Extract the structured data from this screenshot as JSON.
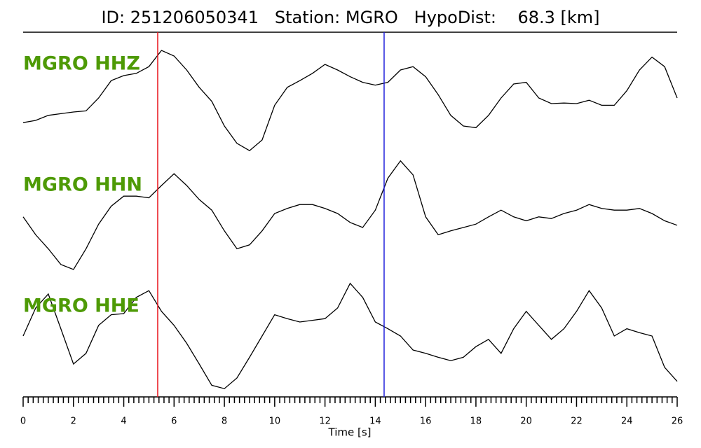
{
  "chart_data": {
    "type": "seismogram",
    "title": "ID: 251206050341   Station: MGRO   HypoDist:    68.3 [km]",
    "xlabel": "Time [s]",
    "xlim": [
      0,
      26
    ],
    "xticks": [
      0,
      2,
      4,
      6,
      8,
      10,
      12,
      14,
      16,
      18,
      20,
      22,
      24,
      26
    ],
    "ylim": [
      -1,
      1
    ],
    "x": [
      0,
      0.5,
      1,
      1.5,
      2,
      2.5,
      3,
      3.5,
      4,
      4.5,
      5,
      5.5,
      6,
      6.5,
      7,
      7.5,
      8,
      8.5,
      9,
      9.5,
      10,
      10.5,
      11,
      11.5,
      12,
      12.5,
      13,
      13.5,
      14,
      14.5,
      15,
      15.5,
      16,
      16.5,
      17,
      17.5,
      18,
      18.5,
      19,
      19.5,
      20,
      20.5,
      21,
      21.5,
      22,
      22.5,
      23,
      23.5,
      24,
      24.5,
      25,
      25.5,
      26
    ],
    "label_color": "#4e9a06",
    "series": [
      {
        "name": "MGRO HHZ",
        "color": "#000000",
        "values": [
          -0.44,
          -0.4,
          -0.31,
          -0.28,
          -0.25,
          -0.23,
          0,
          0.31,
          0.4,
          0.44,
          0.56,
          0.85,
          0.75,
          0.5,
          0.19,
          -0.06,
          -0.5,
          -0.81,
          -0.94,
          -0.75,
          -0.13,
          0.19,
          0.31,
          0.44,
          0.6,
          0.5,
          0.38,
          0.28,
          0.23,
          0.28,
          0.5,
          0.56,
          0.38,
          0.06,
          -0.31,
          -0.5,
          -0.53,
          -0.31,
          0,
          0.25,
          0.28,
          0,
          -0.1,
          -0.09,
          -0.1,
          -0.04,
          -0.13,
          -0.13,
          0.13,
          0.5,
          0.73,
          0.56,
          0
        ]
      },
      {
        "name": "MGRO HHN",
        "color": "#000000",
        "values": [
          -0.06,
          -0.38,
          -0.63,
          -0.91,
          -1,
          -0.63,
          -0.19,
          0.13,
          0.31,
          0.31,
          0.28,
          0.5,
          0.71,
          0.5,
          0.25,
          0.06,
          -0.31,
          -0.63,
          -0.56,
          -0.31,
          0,
          0.09,
          0.16,
          0.16,
          0.09,
          0,
          -0.16,
          -0.25,
          0.06,
          0.63,
          0.94,
          0.69,
          -0.06,
          -0.38,
          -0.31,
          -0.25,
          -0.19,
          -0.06,
          0.06,
          -0.06,
          -0.13,
          -0.06,
          -0.09,
          0,
          0.06,
          0.16,
          0.09,
          0.06,
          0.06,
          0.09,
          0,
          -0.13,
          -0.21
        ]
      },
      {
        "name": "MGRO HHE",
        "color": "#000000",
        "values": [
          0,
          0.5,
          0.75,
          0.13,
          -0.5,
          -0.31,
          0.19,
          0.38,
          0.4,
          0.69,
          0.81,
          0.44,
          0.19,
          -0.13,
          -0.5,
          -0.88,
          -0.94,
          -0.75,
          -0.38,
          0,
          0.38,
          0.31,
          0.25,
          0.28,
          0.31,
          0.5,
          0.94,
          0.69,
          0.25,
          0.13,
          0,
          -0.25,
          -0.31,
          -0.38,
          -0.44,
          -0.38,
          -0.19,
          -0.06,
          -0.31,
          0.13,
          0.44,
          0.19,
          -0.06,
          0.13,
          0.44,
          0.81,
          0.5,
          0,
          0.13,
          0.06,
          0,
          -0.56,
          -0.81
        ]
      }
    ],
    "picks": [
      {
        "time": 5.35,
        "color": "#e8141c"
      },
      {
        "time": 14.35,
        "color": "#1a1adc"
      }
    ]
  }
}
